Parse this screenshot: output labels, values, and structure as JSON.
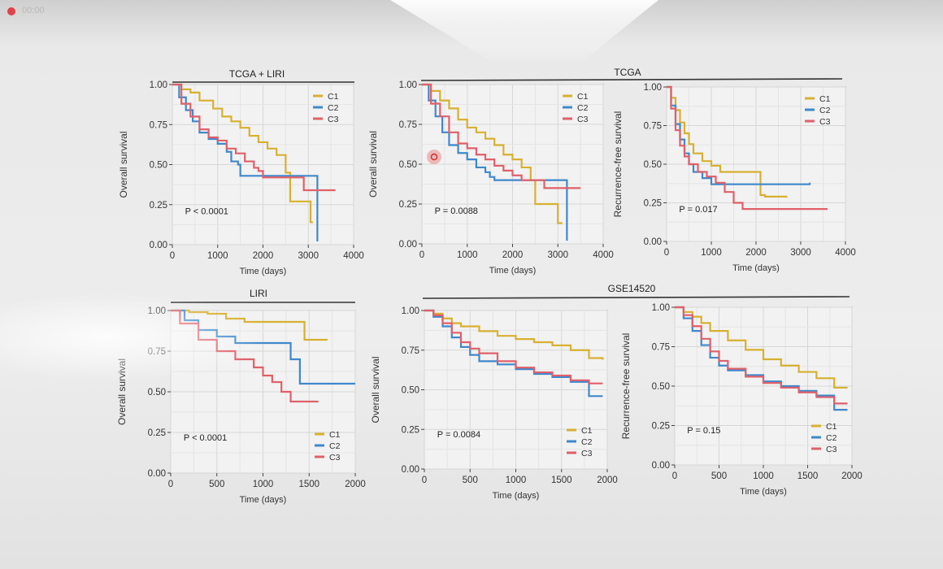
{
  "rec_label": "00:00",
  "group_headers": [
    "TCGA + LIRI",
    "TCGA",
    "LIRI",
    "GSE14520"
  ],
  "colors": {
    "C1": "#d8b030",
    "C2": "#3f88cc",
    "C3": "#e0606a"
  },
  "chart_data": [
    {
      "type": "line",
      "panel": "tcga-liri-os",
      "xlabel": "Time (days)",
      "ylabel": "Overall survival",
      "xlim": [
        0,
        4000
      ],
      "ylim": [
        0,
        1
      ],
      "xticks": [
        "0",
        "1000",
        "2000",
        "3000",
        "4000"
      ],
      "yticks": [
        "0.00",
        "0.25",
        "0.50",
        "0.75",
        "1.00"
      ],
      "pvalue": "P < 0.0001",
      "legend_position": "top-right",
      "series": [
        {
          "name": "C1",
          "x": [
            0,
            200,
            400,
            600,
            900,
            1100,
            1300,
            1500,
            1700,
            1900,
            2100,
            2300,
            2500,
            2600,
            3000,
            3050,
            3100
          ],
          "y": [
            1,
            0.97,
            0.95,
            0.9,
            0.85,
            0.8,
            0.77,
            0.73,
            0.68,
            0.64,
            0.6,
            0.56,
            0.45,
            0.27,
            0.27,
            0.14,
            0.14
          ]
        },
        {
          "name": "C2",
          "x": [
            0,
            150,
            300,
            450,
            600,
            800,
            1000,
            1200,
            1300,
            1450,
            1500,
            2500,
            3100,
            3200
          ],
          "y": [
            1,
            0.92,
            0.84,
            0.77,
            0.7,
            0.66,
            0.63,
            0.58,
            0.52,
            0.5,
            0.43,
            0.43,
            0.43,
            0.02
          ]
        },
        {
          "name": "C3",
          "x": [
            0,
            200,
            400,
            600,
            800,
            1000,
            1200,
            1400,
            1600,
            1800,
            1900,
            2000,
            2800,
            2900,
            3600
          ],
          "y": [
            1,
            0.88,
            0.8,
            0.72,
            0.67,
            0.65,
            0.6,
            0.57,
            0.52,
            0.48,
            0.46,
            0.42,
            0.42,
            0.34,
            0.34
          ]
        }
      ]
    },
    {
      "type": "line",
      "panel": "tcga-os",
      "xlabel": "Time (days)",
      "ylabel": "Overall survival",
      "xlim": [
        0,
        4000
      ],
      "ylim": [
        0,
        1
      ],
      "xticks": [
        "0",
        "1000",
        "2000",
        "3000",
        "4000"
      ],
      "yticks": [
        "0.00",
        "0.25",
        "0.50",
        "0.75",
        "1.00"
      ],
      "pvalue": "P = 0.0088",
      "legend_position": "top-right",
      "series": [
        {
          "name": "C1",
          "x": [
            0,
            200,
            400,
            600,
            800,
            1000,
            1200,
            1400,
            1600,
            1800,
            2000,
            2200,
            2400,
            2500,
            2900,
            3000,
            3100
          ],
          "y": [
            1,
            0.96,
            0.9,
            0.85,
            0.78,
            0.73,
            0.7,
            0.66,
            0.62,
            0.56,
            0.53,
            0.48,
            0.4,
            0.25,
            0.25,
            0.13,
            0.13
          ]
        },
        {
          "name": "C2",
          "x": [
            0,
            150,
            300,
            450,
            600,
            800,
            1000,
            1200,
            1400,
            1500,
            1600,
            3050,
            3200
          ],
          "y": [
            1,
            0.9,
            0.8,
            0.7,
            0.62,
            0.57,
            0.53,
            0.48,
            0.45,
            0.42,
            0.4,
            0.4,
            0.02
          ]
        },
        {
          "name": "C3",
          "x": [
            0,
            200,
            400,
            600,
            800,
            1000,
            1200,
            1400,
            1600,
            1800,
            2000,
            2200,
            2600,
            2700,
            3500
          ],
          "y": [
            1,
            0.88,
            0.8,
            0.7,
            0.63,
            0.6,
            0.56,
            0.53,
            0.49,
            0.46,
            0.43,
            0.4,
            0.4,
            0.35,
            0.35
          ]
        }
      ]
    },
    {
      "type": "line",
      "panel": "tcga-rfs",
      "xlabel": "Time (days)",
      "ylabel": "Recurrence-free survival",
      "xlim": [
        0,
        4000
      ],
      "ylim": [
        0,
        1
      ],
      "xticks": [
        "0",
        "1000",
        "2000",
        "3000",
        "4000"
      ],
      "yticks": [
        "0.00",
        "0.25",
        "0.50",
        "0.75",
        "1.00"
      ],
      "pvalue": "P = 0.017",
      "legend_position": "top-right",
      "series": [
        {
          "name": "C1",
          "x": [
            0,
            100,
            200,
            300,
            400,
            500,
            600,
            800,
            1000,
            1200,
            1400,
            2000,
            2100,
            2200,
            2700
          ],
          "y": [
            1,
            0.93,
            0.85,
            0.77,
            0.7,
            0.63,
            0.57,
            0.52,
            0.49,
            0.45,
            0.45,
            0.45,
            0.3,
            0.29,
            0.29
          ]
        },
        {
          "name": "C2",
          "x": [
            0,
            100,
            200,
            300,
            400,
            500,
            600,
            800,
            1000,
            1100,
            3200
          ],
          "y": [
            1,
            0.88,
            0.76,
            0.66,
            0.57,
            0.5,
            0.45,
            0.41,
            0.37,
            0.37,
            0.38
          ]
        },
        {
          "name": "C3",
          "x": [
            0,
            100,
            200,
            300,
            400,
            500,
            700,
            900,
            1100,
            1300,
            1500,
            1700,
            3600
          ],
          "y": [
            1,
            0.86,
            0.72,
            0.62,
            0.55,
            0.5,
            0.45,
            0.42,
            0.38,
            0.32,
            0.25,
            0.21,
            0.21
          ]
        }
      ]
    },
    {
      "type": "line",
      "panel": "liri-os",
      "xlabel": "Time (days)",
      "ylabel": "Overall survival",
      "xlim": [
        0,
        2000
      ],
      "ylim": [
        0,
        1
      ],
      "xticks": [
        "0",
        "500",
        "1000",
        "1500",
        "2000"
      ],
      "yticks": [
        "0.00",
        "0.25",
        "0.50",
        "0.75",
        "1.00"
      ],
      "pvalue": "P < 0.0001",
      "legend_position": "bottom-right",
      "series": [
        {
          "name": "C1",
          "x": [
            0,
            200,
            400,
            600,
            800,
            1000,
            1300,
            1450,
            1700
          ],
          "y": [
            1,
            0.99,
            0.98,
            0.95,
            0.93,
            0.93,
            0.93,
            0.82,
            0.82
          ]
        },
        {
          "name": "C2",
          "x": [
            0,
            150,
            300,
            500,
            700,
            900,
            1200,
            1300,
            1400,
            1450,
            2000
          ],
          "y": [
            1,
            0.94,
            0.88,
            0.84,
            0.8,
            0.8,
            0.8,
            0.7,
            0.55,
            0.55,
            0.55
          ]
        },
        {
          "name": "C3",
          "x": [
            0,
            100,
            300,
            500,
            700,
            900,
            1000,
            1100,
            1200,
            1300,
            1600
          ],
          "y": [
            1,
            0.92,
            0.82,
            0.75,
            0.7,
            0.65,
            0.6,
            0.56,
            0.5,
            0.44,
            0.44
          ]
        }
      ]
    },
    {
      "type": "line",
      "panel": "gse14520-os",
      "xlabel": "Time (days)",
      "ylabel": "Overall survival",
      "xlim": [
        0,
        2000
      ],
      "ylim": [
        0,
        1
      ],
      "xticks": [
        "0",
        "500",
        "1000",
        "1500",
        "2000"
      ],
      "yticks": [
        "0.00",
        "0.25",
        "0.50",
        "0.75",
        "1.00"
      ],
      "pvalue": "P = 0.0084",
      "legend_position": "bottom-right",
      "series": [
        {
          "name": "C1",
          "x": [
            0,
            100,
            200,
            300,
            400,
            600,
            800,
            1000,
            1200,
            1400,
            1600,
            1800,
            1950
          ],
          "y": [
            1,
            0.98,
            0.95,
            0.92,
            0.9,
            0.87,
            0.84,
            0.82,
            0.8,
            0.78,
            0.75,
            0.7,
            0.69
          ]
        },
        {
          "name": "C2",
          "x": [
            0,
            100,
            200,
            300,
            400,
            500,
            600,
            800,
            1000,
            1200,
            1400,
            1600,
            1800,
            1950
          ],
          "y": [
            1,
            0.96,
            0.9,
            0.83,
            0.77,
            0.72,
            0.68,
            0.66,
            0.63,
            0.6,
            0.58,
            0.55,
            0.46,
            0.46
          ]
        },
        {
          "name": "C3",
          "x": [
            0,
            100,
            200,
            300,
            400,
            500,
            600,
            800,
            1000,
            1200,
            1400,
            1600,
            1800,
            1950
          ],
          "y": [
            1,
            0.97,
            0.92,
            0.86,
            0.8,
            0.76,
            0.73,
            0.68,
            0.64,
            0.61,
            0.59,
            0.56,
            0.54,
            0.54
          ]
        }
      ]
    },
    {
      "type": "line",
      "panel": "gse14520-rfs",
      "xlabel": "Time (days)",
      "ylabel": "Recurrence-free survival",
      "xlim": [
        0,
        2000
      ],
      "ylim": [
        0,
        1
      ],
      "xticks": [
        "0",
        "500",
        "1000",
        "1500",
        "2000"
      ],
      "yticks": [
        "0.00",
        "0.25",
        "0.50",
        "0.75",
        "1.00"
      ],
      "pvalue": "P = 0.15",
      "legend_position": "bottom-right",
      "series": [
        {
          "name": "C1",
          "x": [
            0,
            100,
            200,
            300,
            400,
            600,
            800,
            1000,
            1200,
            1400,
            1600,
            1800,
            1950
          ],
          "y": [
            1,
            0.97,
            0.94,
            0.9,
            0.85,
            0.79,
            0.73,
            0.67,
            0.63,
            0.59,
            0.55,
            0.49,
            0.49
          ]
        },
        {
          "name": "C2",
          "x": [
            0,
            100,
            200,
            300,
            400,
            500,
            600,
            800,
            1000,
            1200,
            1400,
            1600,
            1800,
            1950
          ],
          "y": [
            1,
            0.93,
            0.85,
            0.76,
            0.68,
            0.63,
            0.6,
            0.57,
            0.53,
            0.5,
            0.47,
            0.44,
            0.35,
            0.35
          ]
        },
        {
          "name": "C3",
          "x": [
            0,
            100,
            200,
            300,
            400,
            500,
            600,
            800,
            1000,
            1200,
            1400,
            1600,
            1800,
            1950
          ],
          "y": [
            1,
            0.95,
            0.88,
            0.8,
            0.72,
            0.66,
            0.61,
            0.56,
            0.52,
            0.49,
            0.46,
            0.43,
            0.39,
            0.39
          ]
        }
      ]
    }
  ]
}
